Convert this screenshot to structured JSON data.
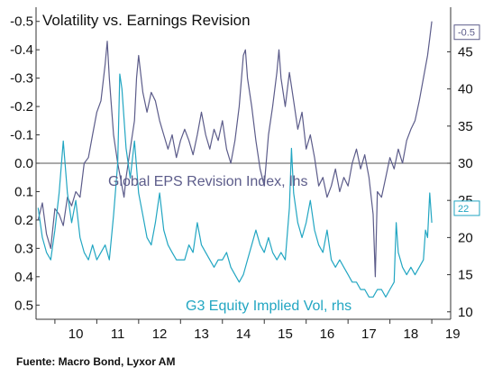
{
  "chart_data": {
    "type": "line",
    "title": "Volatility vs. Earnings Revision",
    "source": "Fuente: Macro Bond, Lyxor AM",
    "x_tick_labels": [
      "10",
      "11",
      "12",
      "13",
      "14",
      "15",
      "16",
      "17",
      "18",
      "19"
    ],
    "left_axis": {
      "inverted": true,
      "range": [
        0.55,
        -0.55
      ],
      "tick_values": [
        -0.5,
        -0.4,
        -0.3,
        -0.2,
        -0.1,
        0.0,
        0.1,
        0.2,
        0.3,
        0.4,
        0.5
      ],
      "tick_labels": [
        "-0.5",
        "-0.4",
        "-0.3",
        "-0.2",
        "-0.1",
        "0.0",
        "0.1",
        "0.2",
        "0.3",
        "0.4",
        "0.5"
      ]
    },
    "right_axis": {
      "range": [
        9,
        51
      ],
      "tick_values": [
        10,
        15,
        20,
        25,
        30,
        35,
        40,
        45
      ],
      "tick_labels": [
        "10",
        "15",
        "20",
        "25",
        "30",
        "35",
        "40",
        "45"
      ]
    },
    "zero_line": true,
    "grid": false,
    "series": [
      {
        "name": "Global EPS Revision Index, lhs",
        "axis": "left",
        "color": "#5c5c8a",
        "end_label": "-0.5",
        "points": [
          [
            2009.6,
            0.2
          ],
          [
            2009.7,
            0.14
          ],
          [
            2009.8,
            0.25
          ],
          [
            2009.9,
            0.3
          ],
          [
            2010.0,
            0.16
          ],
          [
            2010.1,
            0.18
          ],
          [
            2010.2,
            0.22
          ],
          [
            2010.3,
            0.12
          ],
          [
            2010.4,
            0.15
          ],
          [
            2010.5,
            0.1
          ],
          [
            2010.6,
            0.12
          ],
          [
            2010.7,
            0.0
          ],
          [
            2010.8,
            -0.02
          ],
          [
            2010.9,
            -0.1
          ],
          [
            2011.0,
            -0.18
          ],
          [
            2011.1,
            -0.22
          ],
          [
            2011.2,
            -0.35
          ],
          [
            2011.25,
            -0.43
          ],
          [
            2011.3,
            -0.3
          ],
          [
            2011.4,
            -0.1
          ],
          [
            2011.5,
            0.0
          ],
          [
            2011.6,
            0.08
          ],
          [
            2011.65,
            0.12
          ],
          [
            2011.7,
            0.05
          ],
          [
            2011.8,
            -0.05
          ],
          [
            2011.9,
            -0.15
          ],
          [
            2011.95,
            -0.3
          ],
          [
            2012.0,
            -0.38
          ],
          [
            2012.1,
            -0.25
          ],
          [
            2012.2,
            -0.18
          ],
          [
            2012.3,
            -0.25
          ],
          [
            2012.4,
            -0.22
          ],
          [
            2012.5,
            -0.15
          ],
          [
            2012.6,
            -0.1
          ],
          [
            2012.7,
            -0.05
          ],
          [
            2012.8,
            -0.1
          ],
          [
            2012.9,
            -0.02
          ],
          [
            2013.0,
            -0.08
          ],
          [
            2013.1,
            -0.12
          ],
          [
            2013.2,
            -0.08
          ],
          [
            2013.3,
            -0.03
          ],
          [
            2013.4,
            -0.1
          ],
          [
            2013.5,
            -0.18
          ],
          [
            2013.6,
            -0.1
          ],
          [
            2013.7,
            -0.05
          ],
          [
            2013.8,
            -0.12
          ],
          [
            2013.9,
            -0.08
          ],
          [
            2014.0,
            -0.15
          ],
          [
            2014.1,
            -0.05
          ],
          [
            2014.2,
            0.0
          ],
          [
            2014.3,
            -0.08
          ],
          [
            2014.4,
            -0.2
          ],
          [
            2014.5,
            -0.38
          ],
          [
            2014.55,
            -0.4
          ],
          [
            2014.6,
            -0.3
          ],
          [
            2014.7,
            -0.2
          ],
          [
            2014.8,
            -0.08
          ],
          [
            2014.9,
            0.02
          ],
          [
            2015.0,
            0.08
          ],
          [
            2015.1,
            -0.1
          ],
          [
            2015.2,
            -0.2
          ],
          [
            2015.3,
            -0.32
          ],
          [
            2015.35,
            -0.4
          ],
          [
            2015.4,
            -0.3
          ],
          [
            2015.5,
            -0.2
          ],
          [
            2015.6,
            -0.32
          ],
          [
            2015.7,
            -0.22
          ],
          [
            2015.8,
            -0.12
          ],
          [
            2015.9,
            -0.18
          ],
          [
            2016.0,
            -0.05
          ],
          [
            2016.1,
            -0.1
          ],
          [
            2016.2,
            -0.02
          ],
          [
            2016.3,
            0.08
          ],
          [
            2016.4,
            0.05
          ],
          [
            2016.5,
            0.12
          ],
          [
            2016.6,
            0.08
          ],
          [
            2016.7,
            0.02
          ],
          [
            2016.8,
            0.1
          ],
          [
            2016.9,
            0.05
          ],
          [
            2017.0,
            0.08
          ],
          [
            2017.1,
            0.0
          ],
          [
            2017.2,
            -0.05
          ],
          [
            2017.3,
            0.02
          ],
          [
            2017.4,
            -0.03
          ],
          [
            2017.5,
            0.05
          ],
          [
            2017.6,
            0.18
          ],
          [
            2017.65,
            0.4
          ],
          [
            2017.7,
            0.1
          ],
          [
            2017.8,
            0.12
          ],
          [
            2017.9,
            0.05
          ],
          [
            2018.0,
            -0.02
          ],
          [
            2018.1,
            0.02
          ],
          [
            2018.2,
            -0.05
          ],
          [
            2018.3,
            0.0
          ],
          [
            2018.4,
            -0.08
          ],
          [
            2018.5,
            -0.12
          ],
          [
            2018.6,
            -0.15
          ],
          [
            2018.7,
            -0.22
          ],
          [
            2018.8,
            -0.3
          ],
          [
            2018.9,
            -0.38
          ],
          [
            2018.95,
            -0.44
          ],
          [
            2019.0,
            -0.5
          ]
        ]
      },
      {
        "name": "G3 Equity Implied Vol, rhs",
        "axis": "right",
        "color": "#22a6c2",
        "end_label": "22",
        "points": [
          [
            2009.6,
            24
          ],
          [
            2009.7,
            20
          ],
          [
            2009.8,
            18
          ],
          [
            2009.9,
            17
          ],
          [
            2010.0,
            21
          ],
          [
            2010.1,
            26
          ],
          [
            2010.2,
            33
          ],
          [
            2010.3,
            26
          ],
          [
            2010.4,
            22
          ],
          [
            2010.5,
            25
          ],
          [
            2010.6,
            20
          ],
          [
            2010.7,
            18
          ],
          [
            2010.8,
            17
          ],
          [
            2010.9,
            19
          ],
          [
            2011.0,
            17
          ],
          [
            2011.1,
            18
          ],
          [
            2011.2,
            19
          ],
          [
            2011.3,
            17
          ],
          [
            2011.4,
            23
          ],
          [
            2011.5,
            30
          ],
          [
            2011.55,
            42
          ],
          [
            2011.6,
            40
          ],
          [
            2011.7,
            32
          ],
          [
            2011.8,
            28
          ],
          [
            2011.9,
            33
          ],
          [
            2012.0,
            26
          ],
          [
            2012.1,
            23
          ],
          [
            2012.2,
            20
          ],
          [
            2012.3,
            19
          ],
          [
            2012.4,
            22
          ],
          [
            2012.5,
            26
          ],
          [
            2012.6,
            21
          ],
          [
            2012.7,
            19
          ],
          [
            2012.8,
            18
          ],
          [
            2012.9,
            17
          ],
          [
            2013.0,
            17
          ],
          [
            2013.1,
            17
          ],
          [
            2013.2,
            19
          ],
          [
            2013.3,
            18
          ],
          [
            2013.4,
            22
          ],
          [
            2013.5,
            19
          ],
          [
            2013.6,
            18
          ],
          [
            2013.7,
            17
          ],
          [
            2013.8,
            16
          ],
          [
            2013.9,
            17
          ],
          [
            2014.0,
            17
          ],
          [
            2014.1,
            18
          ],
          [
            2014.2,
            16
          ],
          [
            2014.3,
            15
          ],
          [
            2014.4,
            14
          ],
          [
            2014.5,
            15
          ],
          [
            2014.6,
            17
          ],
          [
            2014.7,
            19
          ],
          [
            2014.8,
            21
          ],
          [
            2014.9,
            19
          ],
          [
            2015.0,
            18
          ],
          [
            2015.1,
            20
          ],
          [
            2015.2,
            18
          ],
          [
            2015.3,
            17
          ],
          [
            2015.4,
            18
          ],
          [
            2015.5,
            17
          ],
          [
            2015.6,
            24
          ],
          [
            2015.65,
            32
          ],
          [
            2015.7,
            26
          ],
          [
            2015.8,
            22
          ],
          [
            2015.9,
            20
          ],
          [
            2016.0,
            22
          ],
          [
            2016.1,
            25
          ],
          [
            2016.2,
            21
          ],
          [
            2016.3,
            19
          ],
          [
            2016.4,
            18
          ],
          [
            2016.5,
            21
          ],
          [
            2016.6,
            17
          ],
          [
            2016.7,
            16
          ],
          [
            2016.8,
            17
          ],
          [
            2016.9,
            16
          ],
          [
            2017.0,
            15
          ],
          [
            2017.1,
            14
          ],
          [
            2017.2,
            14
          ],
          [
            2017.3,
            13
          ],
          [
            2017.4,
            13
          ],
          [
            2017.5,
            12
          ],
          [
            2017.6,
            12
          ],
          [
            2017.7,
            13
          ],
          [
            2017.8,
            13
          ],
          [
            2017.9,
            12
          ],
          [
            2018.0,
            13
          ],
          [
            2018.1,
            14
          ],
          [
            2018.15,
            22
          ],
          [
            2018.2,
            18
          ],
          [
            2018.3,
            16
          ],
          [
            2018.4,
            15
          ],
          [
            2018.5,
            16
          ],
          [
            2018.6,
            15
          ],
          [
            2018.7,
            16
          ],
          [
            2018.8,
            17
          ],
          [
            2018.85,
            21
          ],
          [
            2018.9,
            20
          ],
          [
            2018.95,
            26
          ],
          [
            2019.0,
            22
          ]
        ]
      }
    ]
  }
}
